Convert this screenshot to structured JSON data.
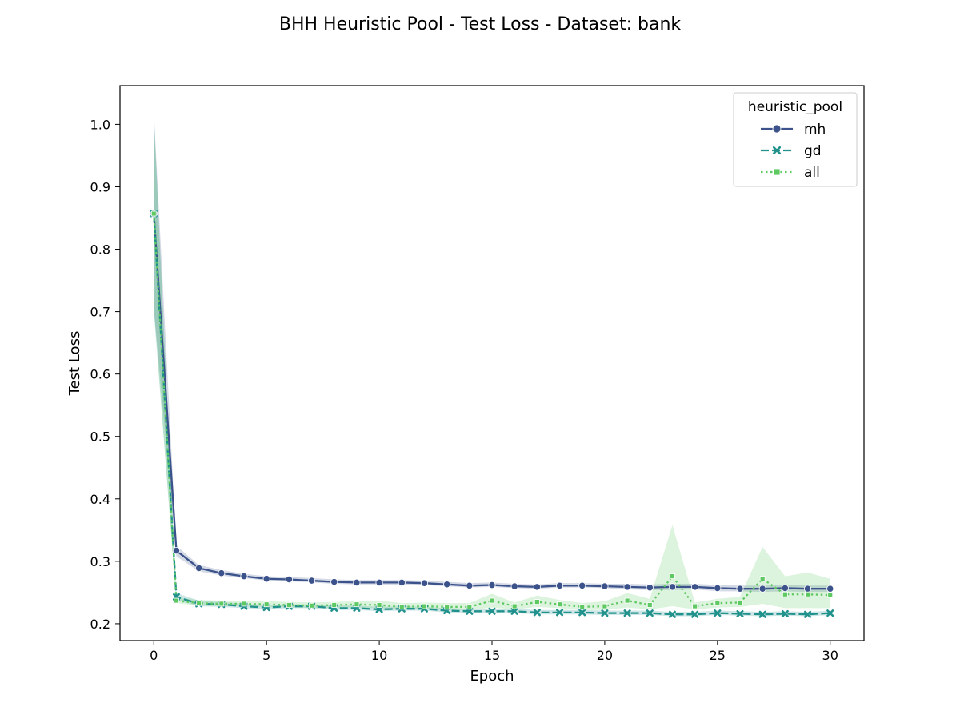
{
  "chart_data": {
    "type": "line",
    "title": "BHH Heuristic Pool - Test Loss - Dataset: bank",
    "xlabel": "Epoch",
    "ylabel": "Test Loss",
    "xlim": [
      -1.5,
      31.5
    ],
    "ylim": [
      0.173,
      1.062
    ],
    "xticks": [
      0,
      5,
      10,
      15,
      20,
      25,
      30
    ],
    "yticks": [
      0.2,
      0.3,
      0.4,
      0.5,
      0.6,
      0.7,
      0.8,
      0.9,
      1.0
    ],
    "xtick_labels": [
      "0",
      "5",
      "10",
      "15",
      "20",
      "25",
      "30"
    ],
    "ytick_labels": [
      "0.2",
      "0.3",
      "0.4",
      "0.5",
      "0.6",
      "0.7",
      "0.8",
      "0.9",
      "1.0"
    ],
    "grid": false,
    "legend": {
      "title": "heuristic_pool",
      "position": "top-right"
    },
    "x": [
      0,
      1,
      2,
      3,
      4,
      5,
      6,
      7,
      8,
      9,
      10,
      11,
      12,
      13,
      14,
      15,
      16,
      17,
      18,
      19,
      20,
      21,
      22,
      23,
      24,
      25,
      26,
      27,
      28,
      29,
      30
    ],
    "series": [
      {
        "name": "mh",
        "color": "#3b528b",
        "linestyle": "solid",
        "marker": "circle",
        "values": [
          0.857,
          0.317,
          0.289,
          0.281,
          0.276,
          0.272,
          0.271,
          0.269,
          0.267,
          0.266,
          0.266,
          0.266,
          0.265,
          0.263,
          0.261,
          0.262,
          0.26,
          0.259,
          0.261,
          0.261,
          0.26,
          0.259,
          0.258,
          0.259,
          0.259,
          0.257,
          0.256,
          0.256,
          0.257,
          0.256,
          0.256
        ],
        "ci_lower": [
          0.705,
          0.308,
          0.284,
          0.277,
          0.273,
          0.269,
          0.268,
          0.266,
          0.264,
          0.263,
          0.263,
          0.262,
          0.262,
          0.26,
          0.258,
          0.259,
          0.257,
          0.256,
          0.258,
          0.258,
          0.257,
          0.255,
          0.254,
          0.254,
          0.255,
          0.252,
          0.252,
          0.251,
          0.252,
          0.251,
          0.251
        ],
        "ci_upper": [
          1.021,
          0.325,
          0.294,
          0.286,
          0.28,
          0.276,
          0.275,
          0.273,
          0.271,
          0.27,
          0.27,
          0.27,
          0.269,
          0.267,
          0.265,
          0.266,
          0.264,
          0.263,
          0.265,
          0.265,
          0.264,
          0.264,
          0.263,
          0.264,
          0.264,
          0.262,
          0.261,
          0.261,
          0.262,
          0.261,
          0.261
        ]
      },
      {
        "name": "gd",
        "color": "#21918c",
        "linestyle": "dashed",
        "marker": "x",
        "values": [
          0.857,
          0.243,
          0.232,
          0.231,
          0.228,
          0.226,
          0.228,
          0.228,
          0.225,
          0.225,
          0.223,
          0.224,
          0.224,
          0.221,
          0.22,
          0.22,
          0.22,
          0.218,
          0.218,
          0.218,
          0.217,
          0.217,
          0.217,
          0.215,
          0.215,
          0.217,
          0.216,
          0.215,
          0.216,
          0.215,
          0.217
        ],
        "ci_lower": [
          0.7,
          0.238,
          0.228,
          0.227,
          0.225,
          0.223,
          0.225,
          0.225,
          0.222,
          0.222,
          0.22,
          0.221,
          0.221,
          0.218,
          0.217,
          0.217,
          0.217,
          0.215,
          0.215,
          0.215,
          0.214,
          0.214,
          0.214,
          0.212,
          0.212,
          0.214,
          0.213,
          0.212,
          0.213,
          0.212,
          0.214
        ],
        "ci_upper": [
          1.015,
          0.249,
          0.237,
          0.235,
          0.232,
          0.23,
          0.231,
          0.231,
          0.229,
          0.229,
          0.227,
          0.228,
          0.227,
          0.225,
          0.224,
          0.224,
          0.224,
          0.222,
          0.222,
          0.222,
          0.221,
          0.221,
          0.221,
          0.219,
          0.219,
          0.221,
          0.22,
          0.219,
          0.22,
          0.219,
          0.221
        ]
      },
      {
        "name": "all",
        "color": "#5ec962",
        "linestyle": "dotted",
        "marker": "square",
        "values": [
          0.857,
          0.237,
          0.233,
          0.232,
          0.232,
          0.231,
          0.23,
          0.229,
          0.23,
          0.231,
          0.23,
          0.227,
          0.228,
          0.227,
          0.227,
          0.237,
          0.228,
          0.235,
          0.231,
          0.227,
          0.228,
          0.237,
          0.23,
          0.276,
          0.228,
          0.233,
          0.234,
          0.272,
          0.247,
          0.247,
          0.246
        ],
        "ci_lower": [
          0.71,
          0.233,
          0.229,
          0.228,
          0.228,
          0.227,
          0.226,
          0.225,
          0.226,
          0.226,
          0.225,
          0.223,
          0.224,
          0.222,
          0.222,
          0.226,
          0.223,
          0.227,
          0.225,
          0.222,
          0.222,
          0.226,
          0.223,
          0.228,
          0.223,
          0.226,
          0.227,
          0.232,
          0.225,
          0.225,
          0.225
        ],
        "ci_upper": [
          1.01,
          0.242,
          0.238,
          0.237,
          0.237,
          0.236,
          0.235,
          0.234,
          0.235,
          0.236,
          0.237,
          0.233,
          0.234,
          0.233,
          0.233,
          0.248,
          0.234,
          0.245,
          0.238,
          0.233,
          0.236,
          0.249,
          0.24,
          0.358,
          0.234,
          0.24,
          0.243,
          0.323,
          0.276,
          0.282,
          0.272
        ]
      }
    ]
  }
}
